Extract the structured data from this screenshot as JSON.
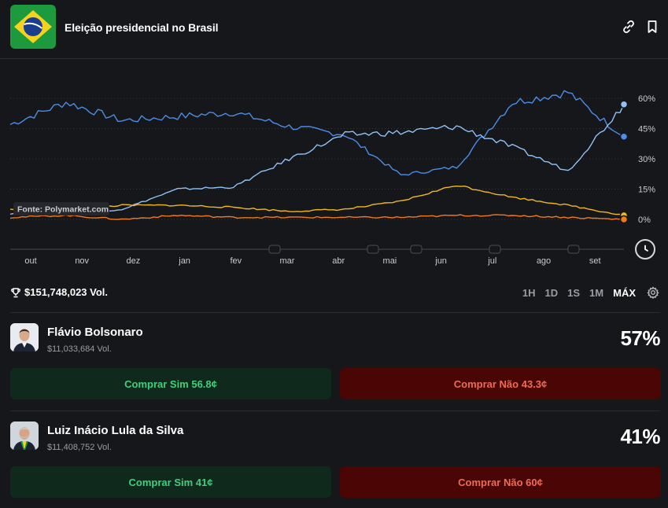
{
  "header": {
    "title": "Eleição presidencial no Brasil"
  },
  "chart": {
    "source_label": "Fonte: Polymarket.com",
    "y_ticks": [
      "60%",
      "45%",
      "30%",
      "15%",
      "0%"
    ],
    "x_ticks": [
      "out",
      "nov",
      "dez",
      "jan",
      "fev",
      "mar",
      "abr",
      "mai",
      "jun",
      "jul",
      "ago",
      "set"
    ]
  },
  "chart_data": {
    "type": "line",
    "x": [
      "out",
      "nov",
      "dez",
      "jan",
      "fev",
      "mar",
      "abr",
      "mai",
      "jun",
      "jul",
      "ago",
      "set"
    ],
    "ylim": [
      0,
      60
    ],
    "y_unit": "%",
    "grid": true,
    "series": [
      {
        "color": "#4a8ee8",
        "values": [
          47,
          58,
          49,
          51,
          53,
          46,
          42,
          22,
          26,
          58,
          63,
          41
        ]
      },
      {
        "color": "#8fc2f7",
        "values": [
          3,
          3,
          5,
          15,
          16,
          30,
          42,
          43,
          46,
          36,
          24,
          57
        ]
      },
      {
        "color": "#f2b81a",
        "values": [
          5,
          5,
          7,
          7,
          6,
          4,
          5,
          9,
          17,
          11,
          7,
          2
        ]
      },
      {
        "color": "#f07a1c",
        "values": [
          1,
          2,
          0,
          2,
          1,
          1,
          1,
          1,
          2,
          2,
          1,
          0
        ]
      }
    ]
  },
  "stats": {
    "volume": "$151,748,023 Vol."
  },
  "ranges": [
    "1H",
    "1D",
    "1S",
    "1M",
    "MÁX"
  ],
  "active_range": "MÁX",
  "candidates": [
    {
      "name": "Flávio Bolsonaro",
      "volume": "$11,033,684 Vol.",
      "percent": "57%",
      "buy_yes": "Comprar Sim 56.8¢",
      "buy_no": "Comprar Não 43.3¢"
    },
    {
      "name": "Luiz Inácio Lula da Silva",
      "volume": "$11,408,752 Vol.",
      "percent": "41%",
      "buy_yes": "Comprar Sim 41¢",
      "buy_no": "Comprar Não 60¢"
    }
  ]
}
